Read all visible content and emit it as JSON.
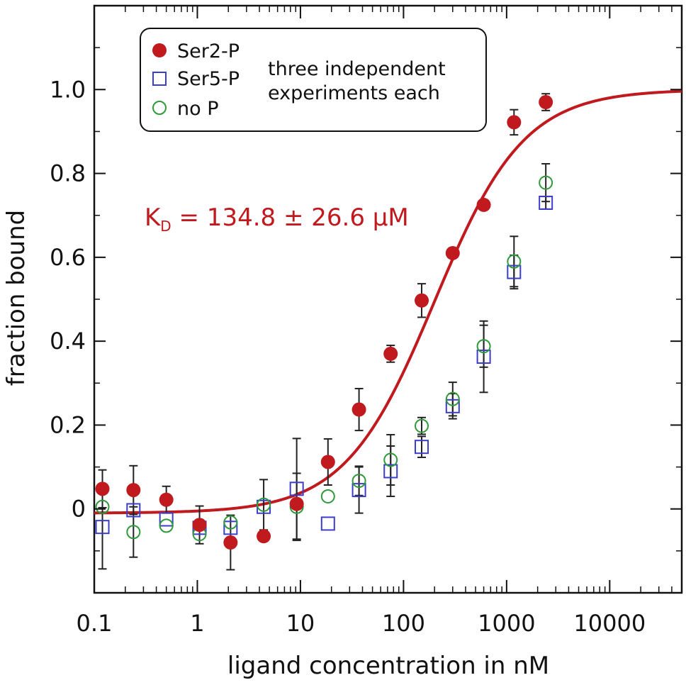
{
  "chart_data": {
    "type": "scatter",
    "title": "",
    "xlabel": "ligand concentration in nM",
    "ylabel": "fraction bound",
    "xscale": "log",
    "xlim": [
      0.1,
      50000
    ],
    "ylim": [
      -0.2,
      1.2
    ],
    "xticks": [
      0.1,
      1,
      10,
      100,
      1000,
      10000
    ],
    "xtick_labels": [
      "0.1",
      "1",
      "10",
      "100",
      "1000",
      "10000"
    ],
    "yticks": [
      0,
      0.2,
      0.4,
      0.6,
      0.8,
      1.0
    ],
    "ytick_labels": [
      "0",
      "0.2",
      "0.4",
      "0.6",
      "0.8",
      "1.0"
    ],
    "grid": false,
    "legend_position": "top-left",
    "annotation": {
      "kd_symbol": "K",
      "kd_subscript": "D",
      "kd_value": " = 134.8 ± 26.6 µM"
    },
    "legend_note": [
      "three independent",
      "experiments each"
    ],
    "series": [
      {
        "name": "Ser2-P",
        "marker": "filled-circle",
        "color": "#c0191e",
        "x": [
          0.12,
          0.24,
          0.5,
          1.05,
          2.1,
          4.4,
          9.2,
          18.5,
          37,
          75,
          150,
          300,
          600,
          1180,
          2400
        ],
        "y": [
          0.048,
          0.045,
          0.022,
          -0.038,
          -0.08,
          -0.065,
          0.012,
          0.112,
          0.237,
          0.37,
          0.497,
          0.61,
          0.725,
          0.922,
          0.97
        ],
        "err": [
          0.045,
          0.058,
          0.032,
          0.045,
          0.065,
          0.0,
          0.0,
          0.055,
          0.05,
          0.02,
          0.04,
          0.0,
          0.0,
          0.03,
          0.02
        ]
      },
      {
        "name": "Ser5-P",
        "marker": "open-square",
        "color": "#3d3dcc",
        "x": [
          0.12,
          0.24,
          0.5,
          1.05,
          2.1,
          4.4,
          9.2,
          18.5,
          37,
          75,
          150,
          300,
          600,
          1180,
          2400
        ],
        "y": [
          -0.043,
          -0.003,
          -0.025,
          -0.045,
          -0.045,
          0.005,
          0.048,
          -0.035,
          0.045,
          0.09,
          0.148,
          0.245,
          0.363,
          0.565,
          0.73
        ],
        "err": [
          0.1,
          0.0,
          0.0,
          0.0,
          0.0,
          0.0,
          0.12,
          0.0,
          0.055,
          0.06,
          0.025,
          0.03,
          0.085,
          0.04,
          0.015
        ]
      },
      {
        "name": "no P",
        "marker": "open-circle",
        "color": "#2e9a3a",
        "x": [
          0.12,
          0.24,
          0.5,
          1.05,
          2.1,
          4.4,
          9.2,
          18.5,
          37,
          75,
          150,
          300,
          600,
          1180,
          2400
        ],
        "y": [
          0.005,
          -0.055,
          -0.04,
          -0.06,
          -0.032,
          0.01,
          0.005,
          0.03,
          0.067,
          0.117,
          0.198,
          0.262,
          0.388,
          0.59,
          0.778
        ],
        "err": [
          0.0,
          0.06,
          0.0,
          0.0,
          0.0,
          0.06,
          0.08,
          0.0,
          0.035,
          0.06,
          0.02,
          0.04,
          0.05,
          0.06,
          0.045
        ]
      }
    ],
    "fit": {
      "name": "fit",
      "color": "#c0191e",
      "model": "hill",
      "ec50": 200,
      "hill_n": 1.0,
      "bottom": -0.01,
      "top": 1.0
    }
  }
}
